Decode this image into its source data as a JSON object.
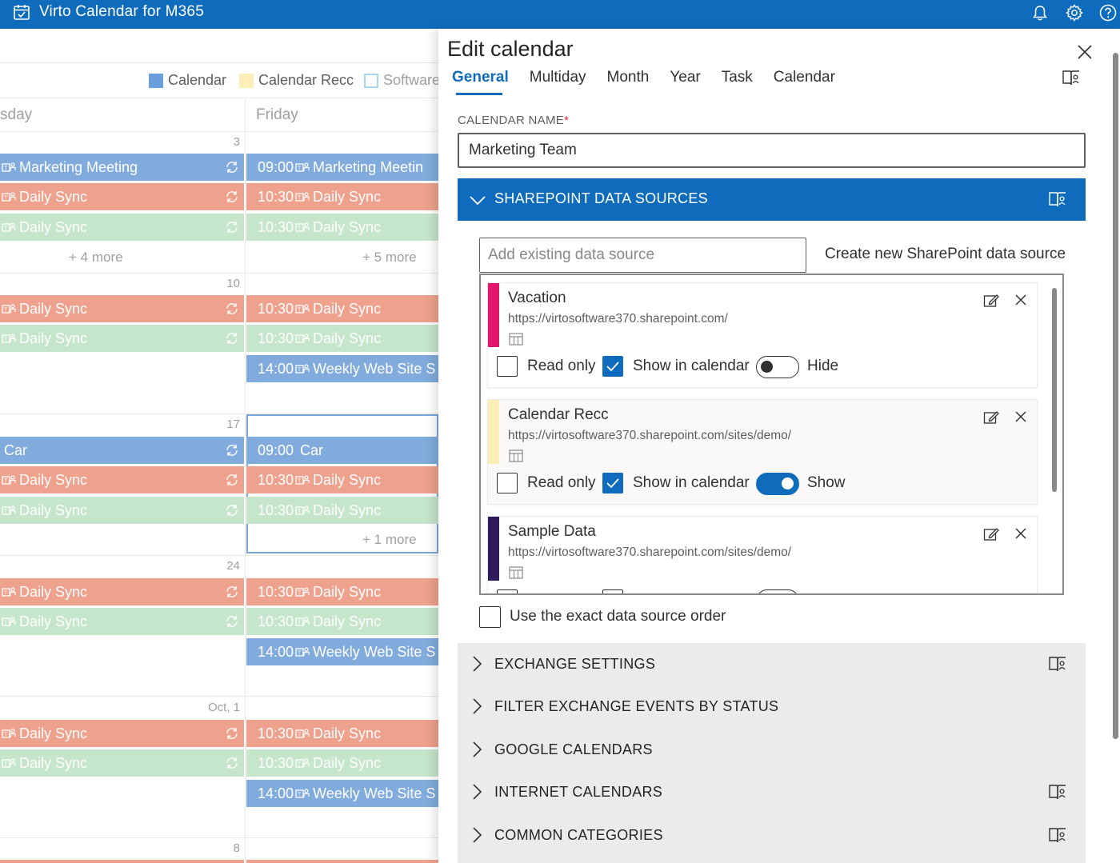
{
  "app": {
    "title": "Virto Calendar for M365"
  },
  "calendar": {
    "legend": [
      {
        "label": "Calendar",
        "color": "#6b9fdc",
        "outline": false
      },
      {
        "label": "Calendar Recc",
        "color": "#fbefb7",
        "outline": false
      },
      {
        "label": "Software",
        "color": "#a8d6f0",
        "outline": true
      }
    ],
    "day_headers": [
      "sday",
      "Friday"
    ],
    "date_labels": [
      "3",
      "10",
      "17",
      "24",
      "Oct, 1",
      "8"
    ],
    "events": {
      "w1_marketing_left": "Marketing Meeting",
      "w1_marketing_right_time": "09:00",
      "w1_marketing_right": "Marketing Meetin",
      "daily_sync": "Daily Sync",
      "time_1030": "10:30",
      "time_1400": "14:00",
      "time_0900": "09:00",
      "weekly_web": "Weekly Web Site S",
      "car": "Car"
    },
    "more": {
      "w1_left": "+ 4 more",
      "w1_right": "+ 5 more",
      "w3_right": "+ 1 more"
    }
  },
  "panel": {
    "title": "Edit calendar",
    "tabs": [
      "General",
      "Multiday",
      "Month",
      "Year",
      "Task",
      "Calendar"
    ],
    "active_tab": "General",
    "calendar_name_label": "CALENDAR NAME",
    "required_mark": "*",
    "calendar_name_value": "Marketing Team",
    "sharepoint_section": "SHAREPOINT DATA SOURCES",
    "add_placeholder": "Add existing data source",
    "create_link": "Create new SharePoint data source",
    "sources": [
      {
        "name": "Vacation",
        "url": "https://virtosoftware370.sharepoint.com/",
        "color": "#e3166e",
        "read_only_label": "Read only",
        "read_only": false,
        "show_label": "Show in calendar",
        "show": true,
        "toggle_label": "Hide",
        "toggle_on": false
      },
      {
        "name": "Calendar Recc",
        "url": "https://virtosoftware370.sharepoint.com/sites/demo/",
        "color": "#fbefb7",
        "read_only_label": "Read only",
        "read_only": false,
        "show_label": "Show in calendar",
        "show": true,
        "toggle_label": "Show",
        "toggle_on": true
      },
      {
        "name": "Sample Data",
        "url": "https://virtosoftware370.sharepoint.com/sites/demo/",
        "color": "#2f1a5c"
      }
    ],
    "exact_order_label": "Use the exact data source order",
    "sections": [
      "EXCHANGE SETTINGS",
      "FILTER EXCHANGE EVENTS BY STATUS",
      "GOOGLE CALENDARS",
      "INTERNET CALENDARS",
      "COMMON CATEGORIES"
    ]
  },
  "icons": [
    "calendar-app-icon",
    "bell-icon",
    "gear-icon",
    "help-icon",
    "close-icon",
    "book-icon",
    "chevron-down-icon",
    "chevron-right-icon",
    "edit-icon",
    "list-icon",
    "teams-icon",
    "repeat-icon",
    "check-icon"
  ]
}
